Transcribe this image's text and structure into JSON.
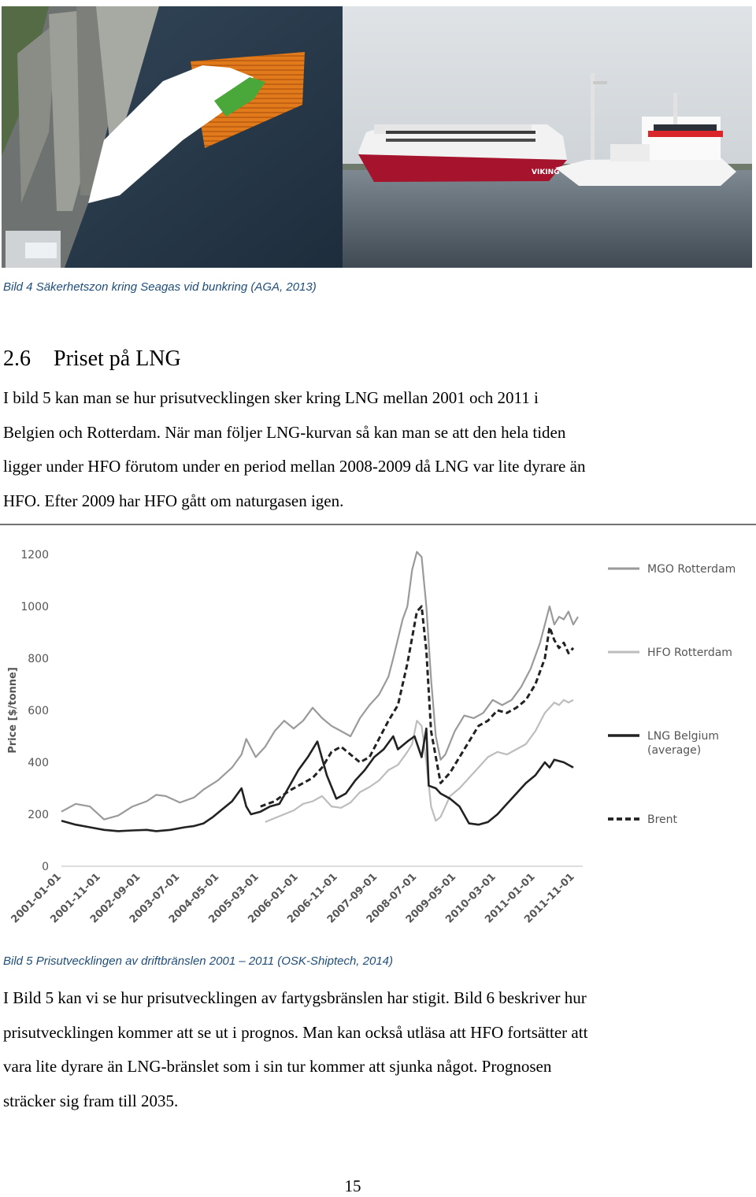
{
  "figure4": {
    "caption": "Bild 4 Säkerhetszon kring Seagas vid bunkring (AGA, 2013)",
    "ship_hull_text": "VIKING"
  },
  "section": {
    "number": "2.6",
    "title": "Priset på LNG"
  },
  "paragraph1": [
    "I bild 5 kan man se hur prisutvecklingen sker kring LNG mellan 2001 och 2011 i",
    "Belgien och Rotterdam. När man följer LNG-kurvan så kan man se att den hela tiden",
    "ligger under HFO förutom under en period mellan 2008-2009 då LNG var lite dyrare än",
    "HFO. Efter 2009 har HFO gått om naturgasen igen."
  ],
  "figure5": {
    "caption": "Bild 5 Prisutvecklingen av driftbränslen 2001 – 2011 (OSK-Shiptech, 2014)"
  },
  "paragraph2": [
    "I Bild 5 kan vi se hur prisutvecklingen av fartygsbränslen har stigit. Bild 6 beskriver hur",
    "prisutvecklingen kommer att se ut i prognos. Man kan också utläsa att HFO fortsätter att",
    "vara lite dyrare än LNG-bränslet som i sin tur kommer att sjunka något. Prognosen",
    "sträcker sig fram till 2035."
  ],
  "page_number": "15",
  "chart_data": {
    "type": "line",
    "ylabel": "Price [$/tonne]",
    "ylim": [
      0,
      1200
    ],
    "yticks": [
      0,
      200,
      400,
      600,
      800,
      1000,
      1200
    ],
    "xlim": [
      2001.0,
      2012.0
    ],
    "xtick_labels": [
      "2001-01-01",
      "2001-11-01",
      "2002-09-01",
      "2003-07-01",
      "2004-05-01",
      "2005-03-01",
      "2006-01-01",
      "2006-11-01",
      "2007-09-01",
      "2008-07-01",
      "2009-05-01",
      "2010-03-01",
      "2011-01-01",
      "2011-11-01"
    ],
    "xtick_values": [
      2001.0,
      2001.83,
      2002.67,
      2003.5,
      2004.33,
      2005.17,
      2006.0,
      2006.83,
      2007.67,
      2008.5,
      2009.33,
      2010.17,
      2011.0,
      2011.83
    ],
    "legend_position": "right",
    "series": [
      {
        "name": "MGO Rotterdam",
        "color": "#9a9a9a",
        "dash": "solid",
        "points": [
          [
            2001.0,
            210
          ],
          [
            2001.3,
            240
          ],
          [
            2001.6,
            230
          ],
          [
            2001.9,
            180
          ],
          [
            2002.2,
            195
          ],
          [
            2002.5,
            230
          ],
          [
            2002.8,
            250
          ],
          [
            2003.0,
            275
          ],
          [
            2003.2,
            270
          ],
          [
            2003.5,
            245
          ],
          [
            2003.8,
            265
          ],
          [
            2004.0,
            295
          ],
          [
            2004.3,
            330
          ],
          [
            2004.6,
            380
          ],
          [
            2004.8,
            430
          ],
          [
            2004.9,
            490
          ],
          [
            2005.1,
            420
          ],
          [
            2005.3,
            460
          ],
          [
            2005.5,
            520
          ],
          [
            2005.7,
            560
          ],
          [
            2005.9,
            530
          ],
          [
            2006.1,
            560
          ],
          [
            2006.3,
            610
          ],
          [
            2006.5,
            570
          ],
          [
            2006.7,
            540
          ],
          [
            2006.9,
            520
          ],
          [
            2007.1,
            500
          ],
          [
            2007.3,
            570
          ],
          [
            2007.5,
            620
          ],
          [
            2007.7,
            660
          ],
          [
            2007.9,
            730
          ],
          [
            2008.0,
            800
          ],
          [
            2008.2,
            950
          ],
          [
            2008.3,
            1000
          ],
          [
            2008.4,
            1140
          ],
          [
            2008.5,
            1210
          ],
          [
            2008.6,
            1190
          ],
          [
            2008.7,
            1000
          ],
          [
            2008.8,
            720
          ],
          [
            2008.9,
            500
          ],
          [
            2009.0,
            410
          ],
          [
            2009.1,
            430
          ],
          [
            2009.3,
            520
          ],
          [
            2009.5,
            580
          ],
          [
            2009.7,
            570
          ],
          [
            2009.9,
            590
          ],
          [
            2010.1,
            640
          ],
          [
            2010.3,
            620
          ],
          [
            2010.5,
            640
          ],
          [
            2010.7,
            690
          ],
          [
            2010.9,
            760
          ],
          [
            2011.1,
            860
          ],
          [
            2011.3,
            1000
          ],
          [
            2011.4,
            930
          ],
          [
            2011.5,
            960
          ],
          [
            2011.6,
            950
          ],
          [
            2011.7,
            980
          ],
          [
            2011.8,
            930
          ],
          [
            2011.9,
            960
          ]
        ]
      },
      {
        "name": "HFO Rotterdam",
        "color": "#bdbdbd",
        "dash": "solid",
        "points": [
          [
            2005.3,
            170
          ],
          [
            2005.5,
            185
          ],
          [
            2005.7,
            200
          ],
          [
            2005.9,
            215
          ],
          [
            2006.1,
            240
          ],
          [
            2006.3,
            250
          ],
          [
            2006.5,
            270
          ],
          [
            2006.7,
            230
          ],
          [
            2006.9,
            225
          ],
          [
            2007.1,
            245
          ],
          [
            2007.3,
            285
          ],
          [
            2007.5,
            305
          ],
          [
            2007.7,
            330
          ],
          [
            2007.9,
            370
          ],
          [
            2008.1,
            390
          ],
          [
            2008.3,
            440
          ],
          [
            2008.4,
            470
          ],
          [
            2008.5,
            560
          ],
          [
            2008.6,
            540
          ],
          [
            2008.7,
            400
          ],
          [
            2008.8,
            230
          ],
          [
            2008.9,
            175
          ],
          [
            2009.0,
            190
          ],
          [
            2009.2,
            270
          ],
          [
            2009.4,
            300
          ],
          [
            2009.6,
            340
          ],
          [
            2009.8,
            380
          ],
          [
            2010.0,
            420
          ],
          [
            2010.2,
            440
          ],
          [
            2010.4,
            430
          ],
          [
            2010.6,
            450
          ],
          [
            2010.8,
            470
          ],
          [
            2011.0,
            520
          ],
          [
            2011.2,
            590
          ],
          [
            2011.4,
            630
          ],
          [
            2011.5,
            620
          ],
          [
            2011.6,
            640
          ],
          [
            2011.7,
            630
          ],
          [
            2011.8,
            640
          ]
        ]
      },
      {
        "name": "LNG Belgium (average)",
        "color": "#222222",
        "dash": "solid",
        "points": [
          [
            2001.0,
            175
          ],
          [
            2001.3,
            160
          ],
          [
            2001.6,
            150
          ],
          [
            2001.9,
            140
          ],
          [
            2002.2,
            135
          ],
          [
            2002.5,
            138
          ],
          [
            2002.8,
            140
          ],
          [
            2003.0,
            135
          ],
          [
            2003.3,
            140
          ],
          [
            2003.6,
            150
          ],
          [
            2003.8,
            155
          ],
          [
            2004.0,
            165
          ],
          [
            2004.2,
            190
          ],
          [
            2004.4,
            220
          ],
          [
            2004.6,
            250
          ],
          [
            2004.8,
            300
          ],
          [
            2004.9,
            230
          ],
          [
            2005.0,
            200
          ],
          [
            2005.2,
            210
          ],
          [
            2005.4,
            230
          ],
          [
            2005.6,
            240
          ],
          [
            2006.0,
            370
          ],
          [
            2006.2,
            420
          ],
          [
            2006.4,
            480
          ],
          [
            2006.6,
            350
          ],
          [
            2006.8,
            260
          ],
          [
            2007.0,
            280
          ],
          [
            2007.2,
            330
          ],
          [
            2007.4,
            370
          ],
          [
            2007.6,
            420
          ],
          [
            2007.8,
            450
          ],
          [
            2008.0,
            500
          ],
          [
            2008.1,
            450
          ],
          [
            2008.3,
            480
          ],
          [
            2008.45,
            500
          ],
          [
            2008.6,
            420
          ],
          [
            2008.7,
            530
          ],
          [
            2008.75,
            310
          ],
          [
            2008.9,
            300
          ],
          [
            2009.0,
            280
          ],
          [
            2009.2,
            260
          ],
          [
            2009.4,
            230
          ],
          [
            2009.6,
            165
          ],
          [
            2009.8,
            160
          ],
          [
            2010.0,
            170
          ],
          [
            2010.2,
            200
          ],
          [
            2010.4,
            240
          ],
          [
            2010.6,
            280
          ],
          [
            2010.8,
            320
          ],
          [
            2011.0,
            350
          ],
          [
            2011.2,
            400
          ],
          [
            2011.3,
            380
          ],
          [
            2011.4,
            410
          ],
          [
            2011.6,
            400
          ],
          [
            2011.8,
            380
          ]
        ]
      },
      {
        "name": "Brent",
        "color": "#222222",
        "dash": "dashed",
        "points": [
          [
            2005.2,
            230
          ],
          [
            2005.5,
            250
          ],
          [
            2005.8,
            290
          ],
          [
            2006.0,
            310
          ],
          [
            2006.3,
            340
          ],
          [
            2006.5,
            380
          ],
          [
            2006.7,
            440
          ],
          [
            2006.9,
            460
          ],
          [
            2007.1,
            430
          ],
          [
            2007.3,
            400
          ],
          [
            2007.5,
            420
          ],
          [
            2007.7,
            490
          ],
          [
            2007.9,
            560
          ],
          [
            2008.1,
            620
          ],
          [
            2008.3,
            780
          ],
          [
            2008.5,
            980
          ],
          [
            2008.6,
            1000
          ],
          [
            2008.7,
            830
          ],
          [
            2008.8,
            520
          ],
          [
            2009.0,
            320
          ],
          [
            2009.2,
            360
          ],
          [
            2009.4,
            420
          ],
          [
            2009.6,
            480
          ],
          [
            2009.8,
            540
          ],
          [
            2010.0,
            560
          ],
          [
            2010.2,
            600
          ],
          [
            2010.4,
            590
          ],
          [
            2010.6,
            610
          ],
          [
            2010.8,
            640
          ],
          [
            2011.0,
            700
          ],
          [
            2011.2,
            800
          ],
          [
            2011.3,
            920
          ],
          [
            2011.4,
            870
          ],
          [
            2011.5,
            840
          ],
          [
            2011.6,
            860
          ],
          [
            2011.7,
            820
          ],
          [
            2011.8,
            840
          ]
        ]
      }
    ]
  }
}
